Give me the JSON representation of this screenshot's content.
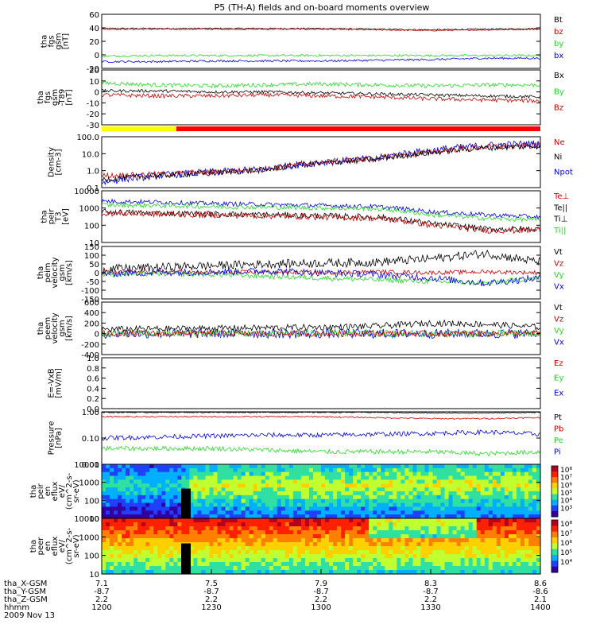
{
  "chart_data": {
    "type": "line",
    "title": "P5 (TH-A) fields and on-board moments overview",
    "date_label": "2009 Nov 13",
    "x_rows": [
      {
        "label": "tha_X-GSM",
        "values": [
          "7.1",
          "7.5",
          "7.9",
          "8.3",
          "8.6"
        ]
      },
      {
        "label": "tha_Y-GSM",
        "values": [
          "-8.7",
          "-8.7",
          "-8.7",
          "-8.7",
          "-8.6"
        ]
      },
      {
        "label": "tha_Z-GSM",
        "values": [
          "2.2",
          "2.2",
          "2.2",
          "2.2",
          "2.1"
        ]
      },
      {
        "label": "hhmm",
        "values": [
          "1200",
          "1230",
          "1300",
          "1330",
          "1400"
        ]
      }
    ],
    "panels": [
      {
        "id": "p1",
        "ylabel": [
          "tha",
          "fgs",
          "gsm",
          "[nT]"
        ],
        "ylim": [
          -20,
          60
        ],
        "scale": "linear",
        "ticks": [
          "60",
          "40",
          "20",
          "0",
          "-20"
        ],
        "legend": [
          {
            "name": "Bt",
            "color": "#000000"
          },
          {
            "name": "bz",
            "color": "#d00000"
          },
          {
            "name": "by",
            "color": "#22dd22"
          },
          {
            "name": "bx",
            "color": "#0000ee"
          }
        ],
        "series": [
          {
            "color": "#000000",
            "base": [
              39,
              39,
              39,
              39,
              39,
              38,
              37,
              38,
              39
            ],
            "noise": 1
          },
          {
            "color": "#d00000",
            "base": [
              38,
              38,
              38,
              38,
              38,
              37,
              36,
              37,
              38
            ],
            "noise": 1
          },
          {
            "color": "#22dd22",
            "base": [
              -2,
              -1,
              -1,
              -1,
              -1,
              -1,
              -1,
              -1,
              -1
            ],
            "noise": 1.5
          },
          {
            "color": "#0000ee",
            "base": [
              -10,
              -10,
              -9,
              -9,
              -9,
              -8,
              -7,
              -5,
              -5
            ],
            "noise": 1.5
          }
        ]
      },
      {
        "id": "p2",
        "ylabel": [
          "tha",
          "fgs",
          "gsm",
          "-T89",
          "[nT]"
        ],
        "ylim": [
          -35,
          20
        ],
        "scale": "linear",
        "ticks": [
          "20",
          "10",
          "0",
          "-10",
          "-20",
          "-30"
        ],
        "legend": [
          {
            "name": "Bx",
            "color": "#000000"
          },
          {
            "name": "By",
            "color": "#22dd22"
          },
          {
            "name": "Bz",
            "color": "#d00000"
          }
        ],
        "series": [
          {
            "color": "#22dd22",
            "base": [
              7,
              5,
              4,
              5,
              6,
              5,
              4,
              5,
              5
            ],
            "noise": 2
          },
          {
            "color": "#000000",
            "base": [
              -1,
              -1,
              -2,
              -2,
              -3,
              -4,
              -5,
              -6,
              -7
            ],
            "noise": 1.5
          },
          {
            "color": "#d00000",
            "base": [
              -5,
              -6,
              -6,
              -5,
              -6,
              -7,
              -9,
              -10,
              -11
            ],
            "noise": 2
          }
        ]
      },
      {
        "id": "p3",
        "ylabel": [
          "Density",
          "[cm-3]"
        ],
        "ylim": [
          0.1,
          100
        ],
        "scale": "log",
        "ticks": [
          "100.0",
          "10.0",
          "1.0",
          "0.1"
        ],
        "legend": [
          {
            "name": "Ne",
            "color": "#d00000"
          },
          {
            "name": "Ni",
            "color": "#000000"
          },
          {
            "name": "Npot",
            "color": "#0000ee"
          }
        ],
        "series": [
          {
            "color": "#0000ee",
            "base": [
              0.2,
              0.5,
              0.8,
              1.2,
              3,
              5,
              15,
              30,
              40
            ],
            "noise": 0.25
          },
          {
            "color": "#d00000",
            "base": [
              0.5,
              0.6,
              0.8,
              1.2,
              3,
              5,
              12,
              25,
              30
            ],
            "noise": 0.2
          },
          {
            "color": "#000000",
            "base": [
              0.3,
              0.5,
              0.7,
              1.1,
              2.8,
              4.5,
              11,
              22,
              28
            ],
            "noise": 0.2
          }
        ]
      },
      {
        "id": "p4",
        "ylabel": [
          "tha",
          "peir",
          "T3",
          "[eV]"
        ],
        "ylim": [
          10,
          10000
        ],
        "scale": "log",
        "ticks": [
          "10000",
          "1000",
          "100",
          "10"
        ],
        "legend": [
          {
            "name": "Te⊥",
            "color": "#d00000"
          },
          {
            "name": "Te||",
            "color": "#000000"
          },
          {
            "name": "Ti⊥",
            "color": "#000000"
          },
          {
            "name": "Ti||",
            "color": "#22dd22"
          }
        ],
        "series": [
          {
            "color": "#0000ee",
            "base": [
              2500,
              2200,
              1800,
              1600,
              1400,
              1200,
              600,
              400,
              300
            ],
            "noise": 0.15
          },
          {
            "color": "#22dd22",
            "base": [
              1500,
              1400,
              1200,
              1100,
              1000,
              900,
              400,
              250,
              200
            ],
            "noise": 0.15
          },
          {
            "color": "#000000",
            "base": [
              600,
              500,
              450,
              400,
              350,
              300,
              120,
              60,
              60
            ],
            "noise": 0.2
          },
          {
            "color": "#d00000",
            "base": [
              500,
              450,
              400,
              350,
              300,
              250,
              100,
              50,
              50
            ],
            "noise": 0.2
          }
        ]
      },
      {
        "id": "p5",
        "ylabel": [
          "tha",
          "peim",
          "velocity",
          "gsm",
          "[km/s]"
        ],
        "ylim": [
          -150,
          150
        ],
        "scale": "linear",
        "ticks": [
          "150",
          "100",
          "50",
          "0",
          "-50",
          "-100",
          "-150"
        ],
        "legend": [
          {
            "name": "Vt",
            "color": "#000000"
          },
          {
            "name": "Vz",
            "color": "#d00000"
          },
          {
            "name": "Vy",
            "color": "#22dd22"
          },
          {
            "name": "Vx",
            "color": "#0000ee"
          }
        ],
        "series": [
          {
            "color": "#000000",
            "base": [
              20,
              30,
              40,
              50,
              55,
              60,
              80,
              110,
              60
            ],
            "noise": 25
          },
          {
            "color": "#d00000",
            "base": [
              0,
              5,
              0,
              5,
              0,
              5,
              0,
              5,
              0
            ],
            "noise": 12
          },
          {
            "color": "#22dd22",
            "base": [
              -10,
              -5,
              -10,
              -20,
              -30,
              -40,
              -50,
              -60,
              -30
            ],
            "noise": 15
          },
          {
            "color": "#0000ee",
            "base": [
              -5,
              0,
              5,
              10,
              0,
              -10,
              -30,
              -60,
              -30
            ],
            "noise": 20
          }
        ]
      },
      {
        "id": "p6",
        "ylabel": [
          "tha",
          "peem",
          "velocity",
          "gsm",
          "[km/s]"
        ],
        "ylim": [
          -400,
          600
        ],
        "scale": "linear",
        "ticks": [
          "600",
          "400",
          "200",
          "0",
          "-200",
          "-400"
        ],
        "legend": [
          {
            "name": "Vt",
            "color": "#000000"
          },
          {
            "name": "Vz",
            "color": "#d00000"
          },
          {
            "name": "Vy",
            "color": "#22dd22"
          },
          {
            "name": "Vx",
            "color": "#0000ee"
          }
        ],
        "series": [
          {
            "color": "#0000ee",
            "base": [
              0,
              0,
              0,
              0,
              0,
              0,
              0,
              0,
              0
            ],
            "noise": 90
          },
          {
            "color": "#22dd22",
            "base": [
              0,
              0,
              0,
              0,
              0,
              0,
              0,
              0,
              0
            ],
            "noise": 70
          },
          {
            "color": "#d00000",
            "base": [
              0,
              0,
              0,
              0,
              0,
              0,
              0,
              0,
              0
            ],
            "noise": 60
          },
          {
            "color": "#000000",
            "base": [
              80,
              90,
              100,
              110,
              120,
              140,
              200,
              180,
              120
            ],
            "noise": 60
          }
        ]
      },
      {
        "id": "p7",
        "ylabel": [
          "E=-VxB",
          "[mV/m]"
        ],
        "ylim": [
          0,
          1
        ],
        "scale": "linear",
        "ticks": [
          "1.0",
          "0.8",
          "0.6",
          "0.4",
          "0.2",
          "0.0"
        ],
        "legend": [
          {
            "name": "Ez",
            "color": "#d00000"
          },
          {
            "name": "Ey",
            "color": "#22dd22"
          },
          {
            "name": "Ex",
            "color": "#0000ee"
          }
        ],
        "series": []
      },
      {
        "id": "p8",
        "ylabel": [
          "Pressure",
          "[nPa]"
        ],
        "ylim": [
          0.01,
          1.0
        ],
        "scale": "log",
        "ticks": [
          "1.00",
          "0.10",
          "0.01"
        ],
        "legend": [
          {
            "name": "Pt",
            "color": "#000000"
          },
          {
            "name": "Pb",
            "color": "#d00000"
          },
          {
            "name": "Pe",
            "color": "#22dd22"
          },
          {
            "name": "Pi",
            "color": "#0000ee"
          }
        ],
        "series": [
          {
            "color": "#000000",
            "base": [
              0.95,
              0.95,
              0.95,
              0.95,
              0.95,
              0.95,
              0.9,
              0.9,
              0.95
            ],
            "noise": 0.02
          },
          {
            "color": "#d00000",
            "base": [
              0.65,
              0.65,
              0.65,
              0.65,
              0.65,
              0.6,
              0.55,
              0.55,
              0.6
            ],
            "noise": 0.03
          },
          {
            "color": "#0000ee",
            "base": [
              0.1,
              0.11,
              0.12,
              0.13,
              0.13,
              0.14,
              0.15,
              0.17,
              0.14
            ],
            "noise": 0.1
          },
          {
            "color": "#22dd22",
            "base": [
              0.04,
              0.04,
              0.04,
              0.035,
              0.03,
              0.03,
              0.03,
              0.025,
              0.03
            ],
            "noise": 0.1
          }
        ]
      },
      {
        "id": "p9",
        "ylabel": [
          "tha",
          "peir",
          "en",
          "eflux",
          "eV/",
          "(cm^2-s-",
          "sr-eV)"
        ],
        "ylim": [
          10,
          10000
        ],
        "scale": "log",
        "type": "spectrogram",
        "ticks": [
          "10000",
          "1000",
          "100",
          "10"
        ],
        "colorbar": [
          "10⁸",
          "10⁷",
          "10⁶",
          "10⁵",
          "10⁴",
          "10³"
        ]
      },
      {
        "id": "p10",
        "ylabel": [
          "tha",
          "peer",
          "en",
          "eflux",
          "eV/",
          "(cm^2-s-",
          "sr-eV)"
        ],
        "ylim": [
          10,
          10000
        ],
        "scale": "log",
        "type": "spectrogram",
        "ticks": [
          "10000",
          "1000",
          "100",
          "10"
        ],
        "colorbar": [
          "10⁸",
          "10⁷",
          "10⁶",
          "10⁵",
          "10⁴"
        ]
      }
    ],
    "mode_bar": [
      {
        "color": "#ffff00",
        "from": 0,
        "to": 0.17
      },
      {
        "color": "#ff0000",
        "from": 0.17,
        "to": 1
      }
    ],
    "grid": false,
    "legend_placement": "right"
  }
}
